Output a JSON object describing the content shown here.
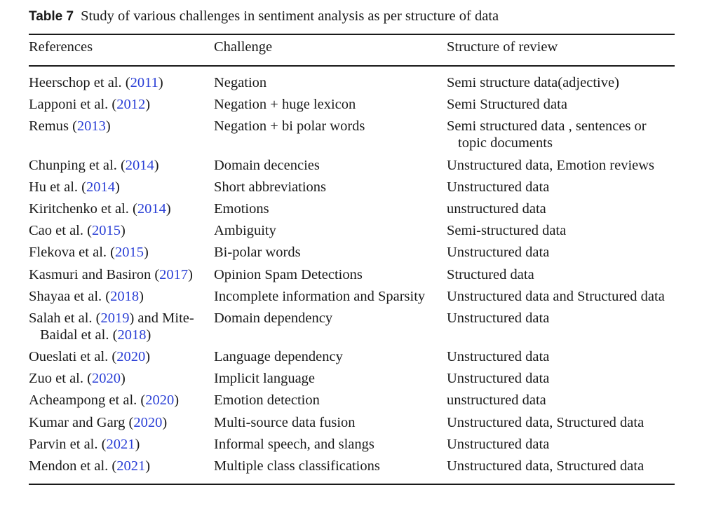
{
  "caption": {
    "label": "Table 7",
    "text": "Study of various challenges in sentiment analysis as per structure of data"
  },
  "table": {
    "headers": [
      "References",
      "Challenge",
      "Structure of review"
    ],
    "rows": [
      {
        "ref": [
          [
            {
              "t": "Heerschop et al. ("
            },
            {
              "t": "2011",
              "link": true
            },
            {
              "t": ")"
            }
          ]
        ],
        "challenge": [
          "Negation"
        ],
        "structure": [
          "Semi structure data(adjective)"
        ]
      },
      {
        "ref": [
          [
            {
              "t": "Lapponi et al. ("
            },
            {
              "t": "2012",
              "link": true
            },
            {
              "t": ")"
            }
          ]
        ],
        "challenge": [
          "Negation + huge lexicon"
        ],
        "structure": [
          "Semi Structured data"
        ]
      },
      {
        "ref": [
          [
            {
              "t": "Remus ("
            },
            {
              "t": "2013",
              "link": true
            },
            {
              "t": ")"
            }
          ]
        ],
        "challenge": [
          "Negation + bi polar words"
        ],
        "structure": [
          "Semi structured data , sentences or",
          "topic documents"
        ]
      },
      {
        "ref": [
          [
            {
              "t": "Chunping et al. ("
            },
            {
              "t": "2014",
              "link": true
            },
            {
              "t": ")"
            }
          ]
        ],
        "challenge": [
          "Domain decencies"
        ],
        "structure": [
          "Unstructured data, Emotion reviews"
        ]
      },
      {
        "ref": [
          [
            {
              "t": "Hu et al. ("
            },
            {
              "t": "2014",
              "link": true
            },
            {
              "t": ")"
            }
          ]
        ],
        "challenge": [
          "Short abbreviations"
        ],
        "structure": [
          "Unstructured data"
        ]
      },
      {
        "ref": [
          [
            {
              "t": "Kiritchenko et al. ("
            },
            {
              "t": "2014",
              "link": true
            },
            {
              "t": ")"
            }
          ]
        ],
        "challenge": [
          "Emotions"
        ],
        "structure": [
          "unstructured data"
        ]
      },
      {
        "ref": [
          [
            {
              "t": "Cao et al. ("
            },
            {
              "t": "2015",
              "link": true
            },
            {
              "t": ")"
            }
          ]
        ],
        "challenge": [
          "Ambiguity"
        ],
        "structure": [
          "Semi-structured data"
        ]
      },
      {
        "ref": [
          [
            {
              "t": "Flekova et al. ("
            },
            {
              "t": "2015",
              "link": true
            },
            {
              "t": ")"
            }
          ]
        ],
        "challenge": [
          "Bi-polar words"
        ],
        "structure": [
          "Unstructured data"
        ]
      },
      {
        "ref": [
          [
            {
              "t": "Kasmuri and Basiron ("
            },
            {
              "t": "2017",
              "link": true
            },
            {
              "t": ")"
            }
          ]
        ],
        "challenge": [
          "Opinion Spam Detections"
        ],
        "structure": [
          "Structured data"
        ]
      },
      {
        "ref": [
          [
            {
              "t": "Shayaa et al. ("
            },
            {
              "t": "2018",
              "link": true
            },
            {
              "t": ")"
            }
          ]
        ],
        "challenge": [
          "Incomplete information and Sparsity"
        ],
        "structure": [
          "Unstructured data and Structured data"
        ]
      },
      {
        "ref": [
          [
            {
              "t": "Salah et al. ("
            },
            {
              "t": "2019",
              "link": true
            },
            {
              "t": ") and Mite-"
            }
          ],
          [
            {
              "t": "Baidal et al. ("
            },
            {
              "t": "2018",
              "link": true
            },
            {
              "t": ")"
            }
          ]
        ],
        "challenge": [
          "Domain dependency"
        ],
        "structure": [
          "Unstructured data"
        ]
      },
      {
        "ref": [
          [
            {
              "t": "Oueslati et al. ("
            },
            {
              "t": "2020",
              "link": true
            },
            {
              "t": ")"
            }
          ]
        ],
        "challenge": [
          "Language dependency"
        ],
        "structure": [
          "Unstructured data"
        ]
      },
      {
        "ref": [
          [
            {
              "t": "Zuo et al. ("
            },
            {
              "t": "2020",
              "link": true
            },
            {
              "t": ")"
            }
          ]
        ],
        "challenge": [
          "Implicit language"
        ],
        "structure": [
          "Unstructured data"
        ]
      },
      {
        "ref": [
          [
            {
              "t": "Acheampong et al. ("
            },
            {
              "t": "2020",
              "link": true
            },
            {
              "t": ")"
            }
          ]
        ],
        "challenge": [
          "Emotion detection"
        ],
        "structure": [
          "unstructured data"
        ]
      },
      {
        "ref": [
          [
            {
              "t": "Kumar and Garg ("
            },
            {
              "t": "2020",
              "link": true
            },
            {
              "t": ")"
            }
          ]
        ],
        "challenge": [
          "Multi-source data fusion"
        ],
        "structure": [
          "Unstructured data, Structured data"
        ]
      },
      {
        "ref": [
          [
            {
              "t": "Parvin et al. ("
            },
            {
              "t": "2021",
              "link": true
            },
            {
              "t": ")"
            }
          ]
        ],
        "challenge": [
          "Informal speech, and slangs"
        ],
        "structure": [
          "Unstructured data"
        ]
      },
      {
        "ref": [
          [
            {
              "t": "Mendon et al. ("
            },
            {
              "t": "2021",
              "link": true
            },
            {
              "t": ")"
            }
          ]
        ],
        "challenge": [
          "Multiple class classifications"
        ],
        "structure": [
          "Unstructured data, Structured data"
        ]
      }
    ]
  },
  "colors": {
    "text": "#1a1a1a",
    "link": "#2a3fd6"
  }
}
